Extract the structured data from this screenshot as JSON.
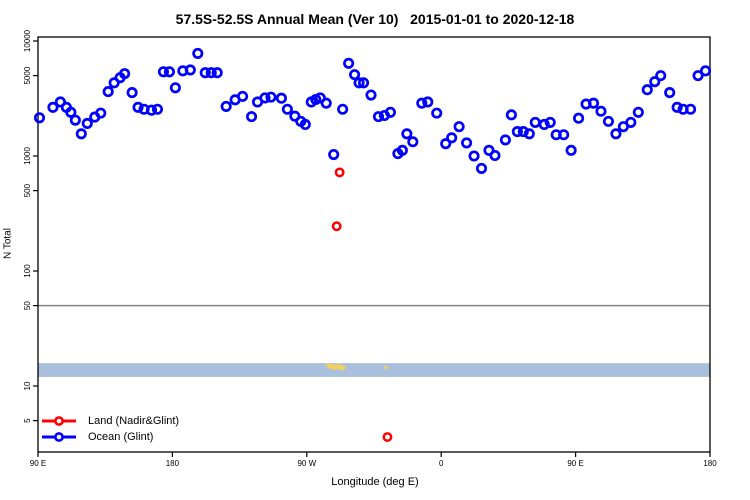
{
  "chart_data": {
    "type": "scatter",
    "title": "57.5S-52.5S Annual Mean (Ver 10)   2015-01-01 to 2020-12-18",
    "xlabel": "Longitude (deg E)",
    "ylabel": "N Total",
    "y_scale": "log",
    "ylim": [
      3,
      11000
    ],
    "grid": false,
    "y_ticks": [
      {
        "value": 5,
        "label": "5"
      },
      {
        "value": 10,
        "label": "10"
      },
      {
        "value": 50,
        "label": "50"
      },
      {
        "value": 100,
        "label": "100"
      },
      {
        "value": 500,
        "label": "500"
      },
      {
        "value": 1000,
        "label": "1000"
      },
      {
        "value": 5000,
        "label": "5000"
      },
      {
        "value": 10000,
        "label": "10000"
      }
    ],
    "x_ticks": [
      {
        "value": 90,
        "label": "90 E"
      },
      {
        "value": 180,
        "label": "180"
      },
      {
        "value": 270,
        "label": "90 W"
      },
      {
        "value": 360,
        "label": "0"
      },
      {
        "value": 450,
        "label": "90 E"
      },
      {
        "value": 540,
        "label": "180"
      }
    ],
    "reference_line": {
      "value": 50,
      "color": "#858585"
    },
    "latitude_band": {
      "value_from": 12,
      "value_to": 15.8,
      "color": "#a9bfdc"
    },
    "land_map_marks": {
      "color": "#f0d060",
      "points": [
        [
          284,
          15.3
        ],
        [
          285,
          14.7
        ],
        [
          286,
          15.1
        ],
        [
          287,
          14.4
        ],
        [
          288,
          15.0
        ],
        [
          289,
          14.2
        ],
        [
          290,
          14.7
        ],
        [
          291,
          15.2
        ],
        [
          292,
          14.3
        ],
        [
          293,
          14.8
        ],
        [
          294,
          14.1
        ],
        [
          295,
          14.5
        ],
        [
          323,
          14.5
        ]
      ]
    },
    "legend": {
      "position": "bottom-left"
    },
    "series": [
      {
        "name": "Land (Nadir&Glint)",
        "color": "#ff0000",
        "points": [
          [
            290,
            245
          ],
          [
            292,
            720
          ],
          [
            324,
            3.6
          ]
        ]
      },
      {
        "name": "Ocean (Glint)",
        "color": "#0000ff",
        "points": [
          [
            91,
            2150
          ],
          [
            100,
            2650
          ],
          [
            105,
            2950
          ],
          [
            109,
            2650
          ],
          [
            112,
            2400
          ],
          [
            115,
            2050
          ],
          [
            119,
            1560
          ],
          [
            123,
            1920
          ],
          [
            128,
            2180
          ],
          [
            132,
            2360
          ],
          [
            137,
            3630
          ],
          [
            141,
            4330
          ],
          [
            145,
            4800
          ],
          [
            148,
            5200
          ],
          [
            153,
            3560
          ],
          [
            157,
            2650
          ],
          [
            161,
            2550
          ],
          [
            166,
            2500
          ],
          [
            170,
            2550
          ],
          [
            174,
            5400
          ],
          [
            178,
            5400
          ],
          [
            182,
            3920
          ],
          [
            187,
            5500
          ],
          [
            192,
            5600
          ],
          [
            197,
            7800
          ],
          [
            202,
            5300
          ],
          [
            206,
            5300
          ],
          [
            210,
            5300
          ],
          [
            216,
            2700
          ],
          [
            222,
            3080
          ],
          [
            227,
            3300
          ],
          [
            233,
            2200
          ],
          [
            237,
            2950
          ],
          [
            242,
            3200
          ],
          [
            246,
            3250
          ],
          [
            253,
            3180
          ],
          [
            257,
            2550
          ],
          [
            262,
            2220
          ],
          [
            266,
            2000
          ],
          [
            269,
            1880
          ],
          [
            273,
            2950
          ],
          [
            276,
            3100
          ],
          [
            279,
            3200
          ],
          [
            283,
            2880
          ],
          [
            288,
            1030
          ],
          [
            294,
            2550
          ],
          [
            298,
            6400
          ],
          [
            302,
            5100
          ],
          [
            305,
            4330
          ],
          [
            308,
            4330
          ],
          [
            313,
            3390
          ],
          [
            318,
            2200
          ],
          [
            322,
            2250
          ],
          [
            326,
            2400
          ],
          [
            331,
            1050
          ],
          [
            334,
            1120
          ],
          [
            337,
            1560
          ],
          [
            341,
            1330
          ],
          [
            347,
            2880
          ],
          [
            351,
            2950
          ],
          [
            357,
            2360
          ],
          [
            363,
            1280
          ],
          [
            367,
            1440
          ],
          [
            372,
            1800
          ],
          [
            377,
            1300
          ],
          [
            382,
            1000
          ],
          [
            387,
            780
          ],
          [
            392,
            1120
          ],
          [
            396,
            1010
          ],
          [
            403,
            1380
          ],
          [
            407,
            2280
          ],
          [
            411,
            1630
          ],
          [
            415,
            1630
          ],
          [
            419,
            1560
          ],
          [
            423,
            1960
          ],
          [
            429,
            1880
          ],
          [
            433,
            1960
          ],
          [
            437,
            1530
          ],
          [
            442,
            1530
          ],
          [
            447,
            1120
          ],
          [
            452,
            2130
          ],
          [
            457,
            2830
          ],
          [
            462,
            2880
          ],
          [
            467,
            2450
          ],
          [
            472,
            2000
          ],
          [
            477,
            1560
          ],
          [
            482,
            1800
          ],
          [
            487,
            1960
          ],
          [
            492,
            2400
          ],
          [
            498,
            3770
          ],
          [
            503,
            4430
          ],
          [
            507,
            5000
          ],
          [
            513,
            3560
          ],
          [
            518,
            2650
          ],
          [
            522,
            2550
          ],
          [
            527,
            2550
          ],
          [
            532,
            5000
          ],
          [
            537,
            5500
          ]
        ]
      }
    ]
  }
}
